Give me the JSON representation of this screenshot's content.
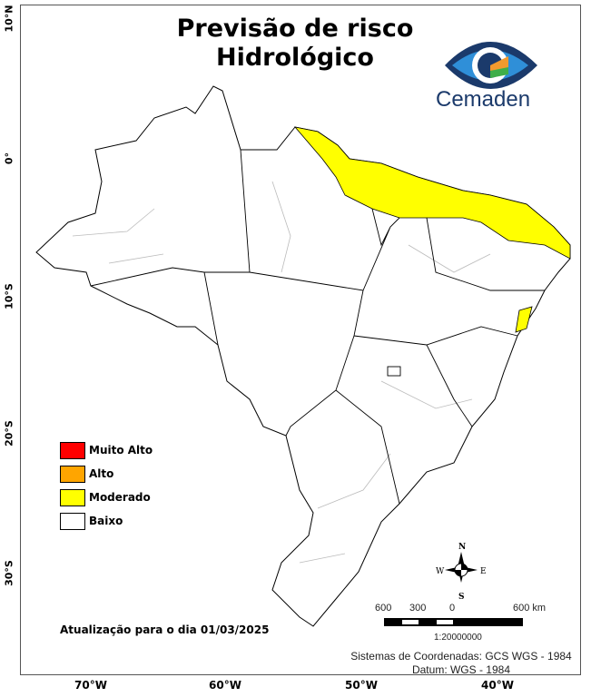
{
  "title": {
    "line1": "Previsão de risco",
    "line2": "Hidrológico"
  },
  "logo": {
    "text": "Cemaden",
    "colors": [
      "#1b3a6b",
      "#2f8fd8",
      "#f29a2e",
      "#3fae49"
    ]
  },
  "legend": [
    {
      "label": "Muito Alto",
      "color": "#ff0000"
    },
    {
      "label": "Alto",
      "color": "#ffa500"
    },
    {
      "label": "Moderado",
      "color": "#ffff00"
    },
    {
      "label": "Baixo",
      "color": "#ffffff"
    }
  ],
  "axes": {
    "lat": [
      "10°N",
      "0°",
      "10°S",
      "20°S",
      "30°S"
    ],
    "lon": [
      "70°W",
      "60°W",
      "50°W",
      "40°W"
    ]
  },
  "update": "Atualização para o dia 01/03/2025",
  "compass": {
    "n": "N",
    "s": "S",
    "e": "E",
    "w": "W"
  },
  "scale": {
    "labels": [
      "600",
      "300",
      "0",
      "600 km"
    ],
    "ratio": "1:20000000"
  },
  "crs": {
    "line1": "Sistemas de Coordenadas: GCS WGS - 1984",
    "line2": "Datum: WGS - 1984"
  }
}
